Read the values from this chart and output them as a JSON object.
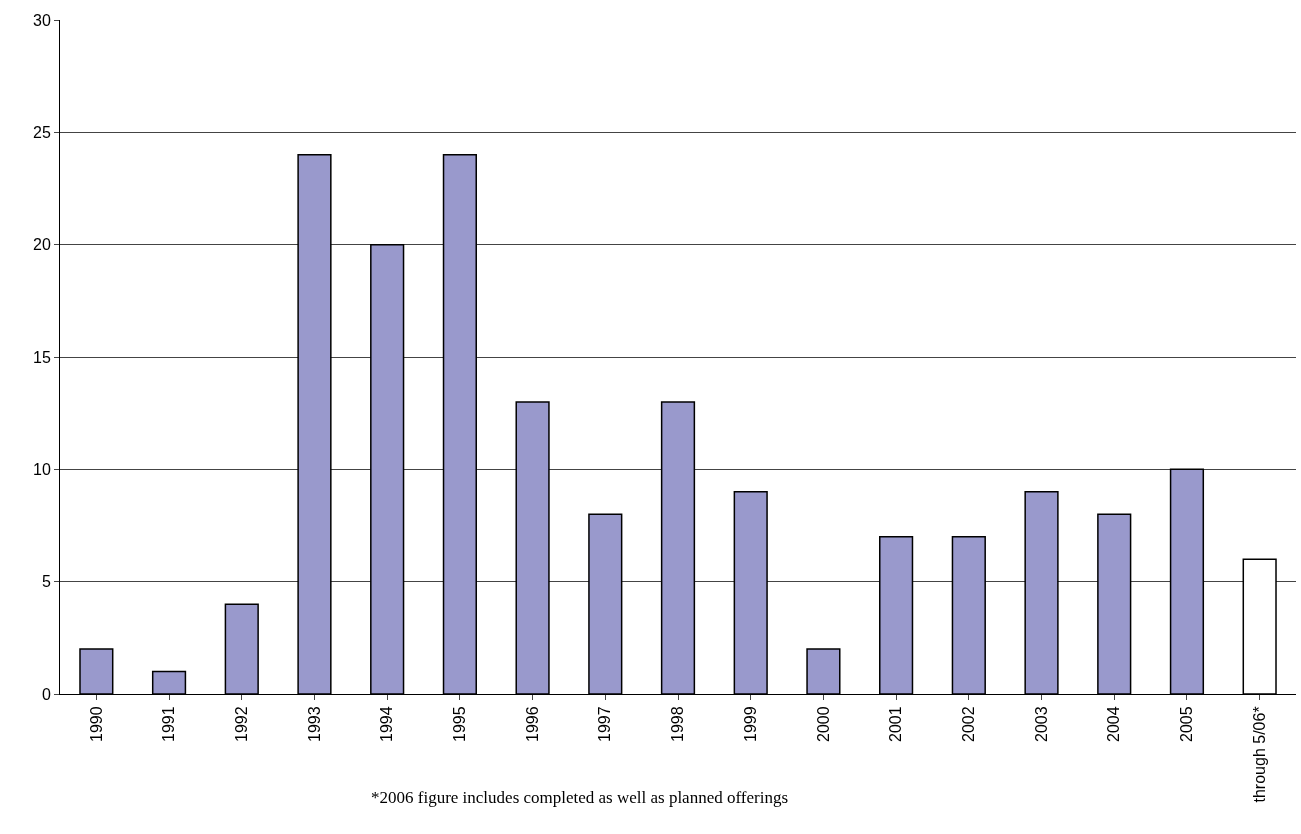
{
  "chart_data": {
    "type": "bar",
    "categories": [
      "1990",
      "1991",
      "1992",
      "1993",
      "1994",
      "1995",
      "1996",
      "1997",
      "1998",
      "1999",
      "2000",
      "2001",
      "2002",
      "2003",
      "2004",
      "2005",
      "through 5/06*"
    ],
    "values": [
      2,
      1,
      4,
      24,
      20,
      24,
      13,
      8,
      13,
      9,
      2,
      7,
      7,
      9,
      8,
      10,
      6
    ],
    "colors": [
      "#9999cc",
      "#9999cc",
      "#9999cc",
      "#9999cc",
      "#9999cc",
      "#9999cc",
      "#9999cc",
      "#9999cc",
      "#9999cc",
      "#9999cc",
      "#9999cc",
      "#9999cc",
      "#9999cc",
      "#9999cc",
      "#9999cc",
      "#9999cc",
      "#ffffff"
    ],
    "ylim": [
      0,
      30
    ],
    "yticks": [
      0,
      5,
      10,
      15,
      20,
      25,
      30
    ],
    "grid": "y",
    "annotations": [
      "*2006 figure includes completed as well as planned offerings"
    ]
  }
}
